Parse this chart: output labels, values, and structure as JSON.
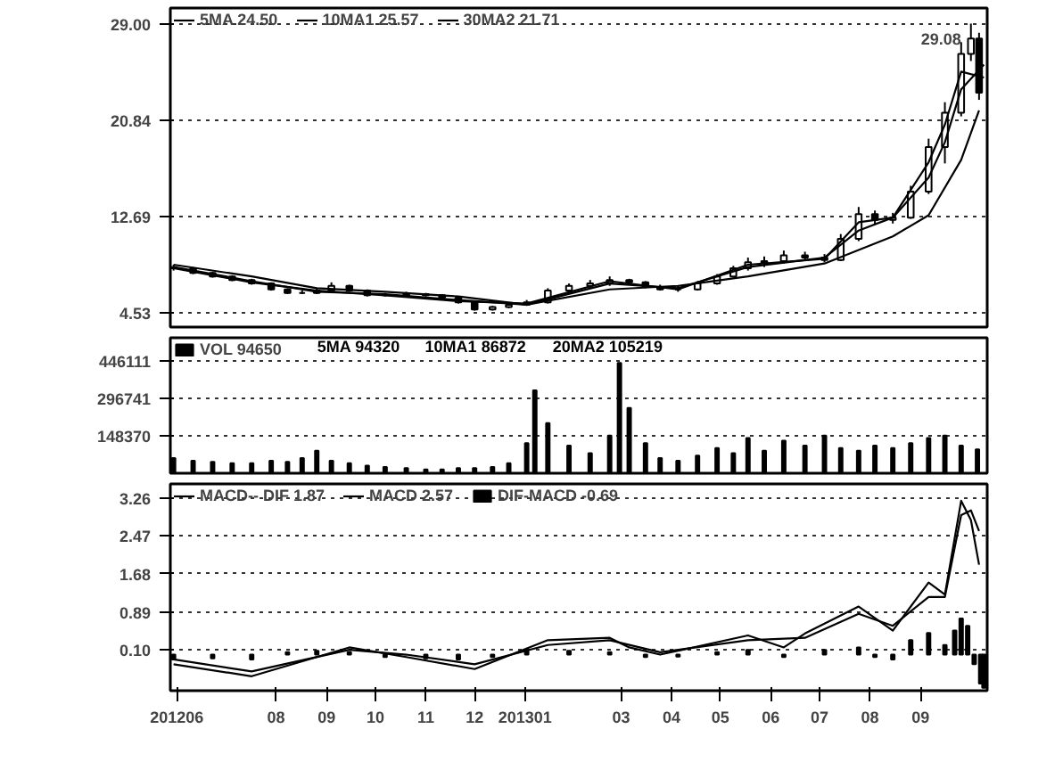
{
  "chart_data": [
    {
      "type": "candlestick",
      "color": "#000000",
      "x": [
        "2012-05-30",
        "2012-06-11",
        "2012-06-23",
        "2012-07-05",
        "2012-07-17",
        "2012-07-29",
        "2012-08-08",
        "2012-08-17",
        "2012-08-26",
        "2012-09-04",
        "2012-09-15",
        "2012-09-26",
        "2012-10-07",
        "2012-10-20",
        "2012-11-01",
        "2012-11-11",
        "2012-11-21",
        "2012-12-01",
        "2012-12-12",
        "2012-12-22",
        "2013-01-02",
        "2013-01-15",
        "2013-01-28",
        "2013-02-10",
        "2013-02-22",
        "2013-03-06",
        "2013-03-16",
        "2013-03-25",
        "2013-04-05",
        "2013-04-17",
        "2013-04-29",
        "2013-05-09",
        "2013-05-18",
        "2013-05-28",
        "2013-06-09",
        "2013-06-22",
        "2013-07-04",
        "2013-07-14",
        "2013-07-25",
        "2013-08-04",
        "2013-08-15",
        "2013-08-26",
        "2013-09-06",
        "2013-09-16",
        "2013-09-26",
        "2013-10-02",
        "2013-10-07"
      ],
      "ohlc": [
        [
          8.4,
          8.6,
          8.1,
          8.3
        ],
        [
          8.3,
          8.4,
          7.8,
          7.9
        ],
        [
          7.9,
          8.0,
          7.5,
          7.6
        ],
        [
          7.6,
          7.7,
          7.2,
          7.3
        ],
        [
          7.3,
          7.4,
          6.9,
          7.0
        ],
        [
          7.0,
          7.1,
          6.4,
          6.5
        ],
        [
          6.5,
          6.6,
          6.1,
          6.2
        ],
        [
          6.2,
          6.4,
          6.1,
          6.2
        ],
        [
          6.2,
          6.6,
          6.1,
          6.4
        ],
        [
          6.4,
          7.1,
          6.3,
          6.8
        ],
        [
          6.8,
          6.9,
          6.3,
          6.4
        ],
        [
          6.4,
          6.5,
          5.9,
          6.0
        ],
        [
          6.0,
          6.2,
          5.9,
          6.0
        ],
        [
          6.0,
          6.3,
          5.9,
          6.1
        ],
        [
          6.1,
          6.2,
          5.9,
          6.0
        ],
        [
          6.0,
          6.1,
          5.7,
          5.8
        ],
        [
          5.8,
          5.9,
          5.3,
          5.4
        ],
        [
          5.4,
          5.5,
          4.7,
          4.8
        ],
        [
          4.8,
          5.1,
          4.7,
          5.0
        ],
        [
          5.0,
          5.3,
          4.9,
          5.2
        ],
        [
          5.2,
          5.6,
          5.1,
          5.4
        ],
        [
          5.4,
          6.6,
          5.3,
          6.4
        ],
        [
          6.4,
          7.0,
          6.2,
          6.8
        ],
        [
          6.8,
          7.3,
          6.6,
          7.0
        ],
        [
          7.0,
          7.6,
          6.8,
          7.3
        ],
        [
          7.3,
          7.4,
          6.9,
          7.1
        ],
        [
          7.1,
          7.2,
          6.6,
          6.7
        ],
        [
          6.7,
          6.9,
          6.4,
          6.5
        ],
        [
          6.5,
          6.8,
          6.3,
          6.5
        ],
        [
          6.5,
          7.2,
          6.4,
          7.0
        ],
        [
          7.0,
          7.8,
          6.9,
          7.6
        ],
        [
          7.6,
          8.5,
          7.5,
          8.3
        ],
        [
          8.3,
          9.2,
          8.1,
          8.8
        ],
        [
          8.8,
          9.3,
          8.4,
          8.9
        ],
        [
          8.9,
          9.8,
          8.7,
          9.4
        ],
        [
          9.4,
          9.7,
          8.9,
          9.2
        ],
        [
          9.2,
          9.5,
          8.8,
          9.0
        ],
        [
          9.0,
          11.2,
          8.9,
          10.8
        ],
        [
          10.8,
          13.5,
          10.6,
          12.9
        ],
        [
          12.9,
          13.2,
          12.0,
          12.4
        ],
        [
          12.4,
          13.0,
          12.1,
          12.6
        ],
        [
          12.6,
          15.3,
          12.5,
          14.8
        ],
        [
          14.8,
          19.3,
          14.6,
          18.6
        ],
        [
          18.6,
          22.4,
          17.2,
          21.5
        ],
        [
          21.5,
          27.5,
          21.2,
          26.5
        ],
        [
          26.5,
          29.08,
          25.9,
          27.8
        ],
        [
          27.8,
          28.3,
          22.6,
          23.2
        ]
      ],
      "series": [
        {
          "name": "5MA 24.50",
          "type": "line",
          "color": "#000000",
          "x": [
            "2012-05-30",
            "2012-07-17",
            "2012-08-26",
            "2012-10-07",
            "2012-11-21",
            "2013-01-02",
            "2013-02-22",
            "2013-04-05",
            "2013-05-18",
            "2013-07-04",
            "2013-07-25",
            "2013-08-15",
            "2013-09-06",
            "2013-09-16",
            "2013-09-26",
            "2013-10-10"
          ],
          "values": [
            8.3,
            7.1,
            6.4,
            6.0,
            5.5,
            5.3,
            7.2,
            6.5,
            8.6,
            9.1,
            12.2,
            12.6,
            17.3,
            20.5,
            25.0,
            24.5
          ]
        },
        {
          "name": "10MA1 25.57",
          "type": "line",
          "color": "#000000",
          "x": [
            "2012-05-30",
            "2012-07-17",
            "2012-08-26",
            "2012-10-07",
            "2012-11-21",
            "2013-01-02",
            "2013-02-22",
            "2013-04-05",
            "2013-05-18",
            "2013-07-04",
            "2013-07-25",
            "2013-08-15",
            "2013-09-06",
            "2013-09-16",
            "2013-09-26",
            "2013-10-10"
          ],
          "values": [
            8.4,
            7.2,
            6.3,
            6.1,
            5.6,
            5.2,
            7.0,
            6.6,
            8.4,
            9.2,
            11.5,
            12.6,
            16.0,
            19.0,
            23.5,
            25.6
          ]
        },
        {
          "name": "30MA2 21.71",
          "type": "line",
          "color": "#000000",
          "x": [
            "2012-05-30",
            "2012-07-17",
            "2012-08-26",
            "2012-10-07",
            "2012-11-21",
            "2013-01-02",
            "2013-02-22",
            "2013-04-05",
            "2013-05-18",
            "2013-07-04",
            "2013-08-15",
            "2013-09-06",
            "2013-09-26",
            "2013-10-07"
          ],
          "values": [
            8.6,
            7.6,
            6.6,
            6.3,
            5.9,
            5.2,
            6.5,
            6.8,
            7.6,
            8.7,
            11.0,
            12.8,
            17.5,
            21.7
          ]
        }
      ],
      "xlim": [
        "2012-05-28",
        "2013-10-12"
      ],
      "ylim": [
        3.3,
        30.4
      ],
      "yticks": [
        4.53,
        12.69,
        20.84,
        {
          "value": 29.0,
          "label": "29.00"
        }
      ],
      "tick_labels": "y",
      "grid": "y",
      "legend": "top left",
      "annotations": [
        {
          "text": "29.08",
          "x": "2013-10-02",
          "y": 29.08
        }
      ]
    },
    {
      "type": "bar",
      "x": [
        "2012-05-30",
        "2012-06-11",
        "2012-06-23",
        "2012-07-05",
        "2012-07-17",
        "2012-07-29",
        "2012-08-08",
        "2012-08-17",
        "2012-08-26",
        "2012-09-04",
        "2012-09-15",
        "2012-09-26",
        "2012-10-07",
        "2012-10-20",
        "2012-11-01",
        "2012-11-11",
        "2012-11-21",
        "2012-12-01",
        "2012-12-12",
        "2012-12-22",
        "2013-01-02",
        "2013-01-07",
        "2013-01-15",
        "2013-01-28",
        "2013-02-10",
        "2013-02-22",
        "2013-02-28",
        "2013-03-06",
        "2013-03-16",
        "2013-03-25",
        "2013-04-05",
        "2013-04-17",
        "2013-04-29",
        "2013-05-09",
        "2013-05-18",
        "2013-05-28",
        "2013-06-09",
        "2013-06-22",
        "2013-07-04",
        "2013-07-14",
        "2013-07-25",
        "2013-08-04",
        "2013-08-15",
        "2013-08-26",
        "2013-09-06",
        "2013-09-16",
        "2013-09-26",
        "2013-10-06"
      ],
      "series": [
        {
          "name": "VOL 94650",
          "color": "#000000",
          "values": [
            60000,
            50000,
            45000,
            40000,
            40000,
            50000,
            45000,
            60000,
            90000,
            50000,
            40000,
            30000,
            25000,
            20000,
            15000,
            15000,
            20000,
            20000,
            25000,
            40000,
            120000,
            330000,
            200000,
            110000,
            80000,
            150000,
            440000,
            260000,
            120000,
            60000,
            50000,
            70000,
            100000,
            80000,
            140000,
            90000,
            130000,
            110000,
            150000,
            100000,
            90000,
            110000,
            100000,
            120000,
            140000,
            150000,
            110000,
            95000
          ]
        }
      ],
      "xlim": [
        "2012-05-28",
        "2013-10-12"
      ],
      "ylim": [
        0,
        540000
      ],
      "yticks": [
        {
          "value": 148370,
          "label": "148370"
        },
        {
          "value": 296741,
          "label": "296741"
        },
        {
          "value": 446111,
          "label": "446111"
        }
      ],
      "tick_labels": "y",
      "grid": "y",
      "legend": "top left",
      "annotations": [
        "5MA 94320",
        "10MA1 86872",
        "20MA2 105219"
      ]
    },
    {
      "type": "line",
      "series": [
        {
          "name": "MACD-- DIF 1.87",
          "color": "#000000",
          "x": [
            "2012-05-30",
            "2012-07-17",
            "2012-09-15",
            "2012-10-20",
            "2012-12-01",
            "2013-01-15",
            "2013-02-22",
            "2013-03-06",
            "2013-03-25",
            "2013-05-18",
            "2013-06-09",
            "2013-06-22",
            "2013-07-25",
            "2013-08-15",
            "2013-09-06",
            "2013-09-16",
            "2013-09-26",
            "2013-10-02",
            "2013-10-07"
          ],
          "values": [
            -0.2,
            -0.45,
            0.15,
            -0.05,
            -0.3,
            0.3,
            0.35,
            0.15,
            0.0,
            0.4,
            0.15,
            0.44,
            1.0,
            0.5,
            1.5,
            1.25,
            3.2,
            2.8,
            1.87
          ]
        },
        {
          "name": "MACD 2.57",
          "color": "#000000",
          "x": [
            "2012-05-30",
            "2012-07-17",
            "2012-09-15",
            "2012-10-20",
            "2012-12-01",
            "2013-01-15",
            "2013-02-22",
            "2013-03-25",
            "2013-05-18",
            "2013-06-22",
            "2013-07-25",
            "2013-08-15",
            "2013-09-06",
            "2013-09-16",
            "2013-09-26",
            "2013-10-02",
            "2013-10-07"
          ],
          "values": [
            -0.1,
            -0.35,
            0.1,
            0.0,
            -0.2,
            0.2,
            0.3,
            0.05,
            0.3,
            0.35,
            0.85,
            0.6,
            1.2,
            1.2,
            2.9,
            3.0,
            2.57
          ]
        },
        {
          "name": "DIF-MACD -0.69",
          "type": "bar",
          "color": "#000000",
          "x": [
            "2012-05-30",
            "2012-06-23",
            "2012-07-17",
            "2012-08-08",
            "2012-08-26",
            "2012-09-15",
            "2012-10-07",
            "2012-11-01",
            "2012-11-21",
            "2012-12-12",
            "2013-01-02",
            "2013-01-28",
            "2013-02-22",
            "2013-03-16",
            "2013-04-05",
            "2013-04-29",
            "2013-05-18",
            "2013-06-09",
            "2013-07-04",
            "2013-07-25",
            "2013-08-04",
            "2013-08-15",
            "2013-08-26",
            "2013-09-06",
            "2013-09-16",
            "2013-09-22",
            "2013-09-26",
            "2013-09-30",
            "2013-10-04",
            "2013-10-08",
            "2013-10-10"
          ],
          "values": [
            -0.1,
            -0.08,
            -0.1,
            0.05,
            0.08,
            0.05,
            -0.05,
            -0.08,
            -0.1,
            -0.05,
            0.1,
            0.08,
            0.05,
            -0.05,
            -0.04,
            0.05,
            0.1,
            -0.05,
            0.1,
            0.15,
            -0.05,
            -0.1,
            0.3,
            0.45,
            0.2,
            0.5,
            0.75,
            0.6,
            -0.2,
            -0.6,
            -0.69
          ]
        }
      ],
      "xlim": [
        "2012-05-28",
        "2013-10-12"
      ],
      "xticks": [
        {
          "value": "2012-06-01",
          "label": "201206"
        },
        {
          "value": "2012-08-01",
          "label": "08"
        },
        {
          "value": "2012-09-01",
          "label": "09"
        },
        {
          "value": "2012-10-01",
          "label": "10"
        },
        {
          "value": "2012-11-01",
          "label": "11"
        },
        {
          "value": "2012-12-01",
          "label": "12"
        },
        {
          "value": "2013-01-01",
          "label": "201301"
        },
        {
          "value": "2013-03-01",
          "label": "03"
        },
        {
          "value": "2013-04-01",
          "label": "04"
        },
        {
          "value": "2013-05-01",
          "label": "05"
        },
        {
          "value": "2013-06-01",
          "label": "06"
        },
        {
          "value": "2013-07-01",
          "label": "07"
        },
        {
          "value": "2013-08-01",
          "label": "08"
        },
        {
          "value": "2013-09-01",
          "label": "09"
        }
      ],
      "ylim": [
        -0.75,
        3.55
      ],
      "yticks": [
        {
          "value": 0.1,
          "label": "0.10"
        },
        0.89,
        1.68,
        2.47,
        3.26
      ],
      "grid": "y",
      "legend": "top left"
    }
  ]
}
